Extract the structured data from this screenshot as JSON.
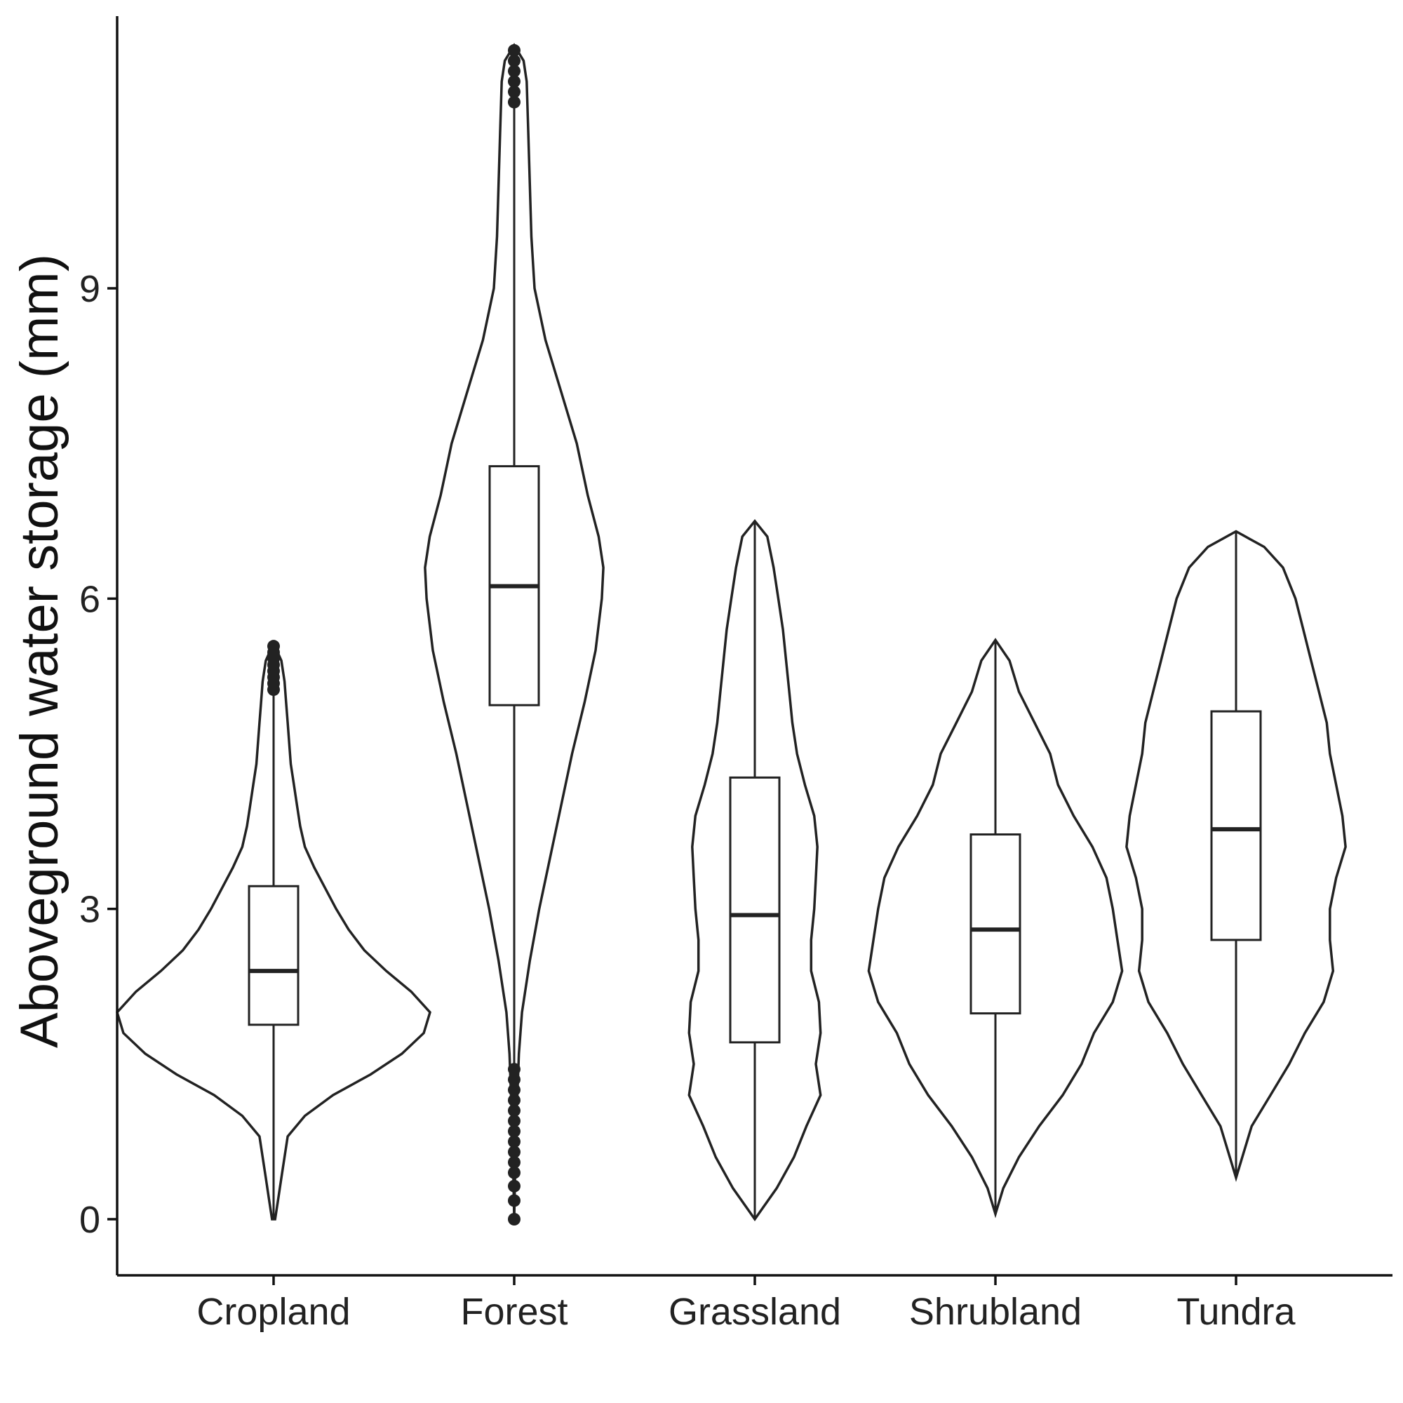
{
  "chart_data": {
    "type": "violin",
    "ylabel": "Aboveground water storage (mm)",
    "xlabel": "",
    "ylim": [
      -0.55,
      11.75
    ],
    "yticks": [
      0,
      3,
      6,
      9
    ],
    "grid": false,
    "colors": {
      "line": "#222222",
      "fill": "#ffffff"
    },
    "categories": [
      "Cropland",
      "Forest",
      "Grassland",
      "Shrubland",
      "Tundra"
    ],
    "series": [
      {
        "category": "Cropland",
        "box": {
          "q1": 1.88,
          "median": 2.4,
          "q3": 3.22,
          "whisker_low": 0.0,
          "whisker_high": 5.1
        },
        "outliers": [
          5.12,
          5.18,
          5.24,
          5.3,
          5.36,
          5.42,
          5.48,
          5.54
        ],
        "density": [
          [
            0.0,
            0.01
          ],
          [
            0.2,
            0.03
          ],
          [
            0.4,
            0.05
          ],
          [
            0.6,
            0.07
          ],
          [
            0.8,
            0.09
          ],
          [
            1.0,
            0.2
          ],
          [
            1.2,
            0.38
          ],
          [
            1.4,
            0.62
          ],
          [
            1.6,
            0.82
          ],
          [
            1.8,
            0.96
          ],
          [
            2.0,
            1.0
          ],
          [
            2.2,
            0.88
          ],
          [
            2.4,
            0.72
          ],
          [
            2.6,
            0.58
          ],
          [
            2.8,
            0.48
          ],
          [
            3.0,
            0.4
          ],
          [
            3.2,
            0.33
          ],
          [
            3.4,
            0.26
          ],
          [
            3.6,
            0.2
          ],
          [
            3.8,
            0.17
          ],
          [
            4.0,
            0.15
          ],
          [
            4.2,
            0.13
          ],
          [
            4.4,
            0.11
          ],
          [
            4.6,
            0.1
          ],
          [
            4.8,
            0.09
          ],
          [
            5.0,
            0.08
          ],
          [
            5.2,
            0.07
          ],
          [
            5.4,
            0.05
          ],
          [
            5.5,
            0.02
          ],
          [
            5.55,
            0.0
          ]
        ]
      },
      {
        "category": "Forest",
        "box": {
          "q1": 4.97,
          "median": 6.12,
          "q3": 7.28,
          "whisker_low": 1.5,
          "whisker_high": 10.75
        },
        "outliers": [
          0.0,
          0.18,
          0.32,
          0.45,
          0.55,
          0.65,
          0.75,
          0.85,
          0.95,
          1.05,
          1.15,
          1.25,
          1.35,
          1.45,
          10.8,
          10.9,
          11.0,
          11.1,
          11.2,
          11.3
        ],
        "density": [
          [
            0.0,
            0.0
          ],
          [
            0.4,
            0.005
          ],
          [
            0.8,
            0.01
          ],
          [
            1.2,
            0.02
          ],
          [
            1.6,
            0.03
          ],
          [
            2.0,
            0.05
          ],
          [
            2.5,
            0.1
          ],
          [
            3.0,
            0.16
          ],
          [
            3.5,
            0.23
          ],
          [
            4.0,
            0.3
          ],
          [
            4.5,
            0.37
          ],
          [
            5.0,
            0.45
          ],
          [
            5.5,
            0.52
          ],
          [
            6.0,
            0.56
          ],
          [
            6.3,
            0.57
          ],
          [
            6.6,
            0.54
          ],
          [
            7.0,
            0.47
          ],
          [
            7.5,
            0.4
          ],
          [
            8.0,
            0.3
          ],
          [
            8.5,
            0.2
          ],
          [
            9.0,
            0.13
          ],
          [
            9.5,
            0.11
          ],
          [
            10.0,
            0.1
          ],
          [
            10.5,
            0.09
          ],
          [
            11.0,
            0.08
          ],
          [
            11.2,
            0.06
          ],
          [
            11.35,
            0.0
          ]
        ]
      },
      {
        "category": "Grassland",
        "box": {
          "q1": 1.71,
          "median": 2.94,
          "q3": 4.27,
          "whisker_low": 0.0,
          "whisker_high": 6.75
        },
        "outliers": [],
        "density": [
          [
            0.0,
            0.0
          ],
          [
            0.3,
            0.14
          ],
          [
            0.6,
            0.25
          ],
          [
            0.9,
            0.33
          ],
          [
            1.2,
            0.42
          ],
          [
            1.5,
            0.39
          ],
          [
            1.8,
            0.42
          ],
          [
            2.1,
            0.41
          ],
          [
            2.4,
            0.36
          ],
          [
            2.7,
            0.36
          ],
          [
            3.0,
            0.38
          ],
          [
            3.3,
            0.39
          ],
          [
            3.6,
            0.4
          ],
          [
            3.9,
            0.38
          ],
          [
            4.2,
            0.32
          ],
          [
            4.5,
            0.27
          ],
          [
            4.8,
            0.24
          ],
          [
            5.1,
            0.22
          ],
          [
            5.4,
            0.2
          ],
          [
            5.7,
            0.18
          ],
          [
            6.0,
            0.15
          ],
          [
            6.3,
            0.12
          ],
          [
            6.6,
            0.08
          ],
          [
            6.75,
            0.0
          ]
        ]
      },
      {
        "category": "Shrubland",
        "box": {
          "q1": 1.99,
          "median": 2.8,
          "q3": 3.72,
          "whisker_low": 0.05,
          "whisker_high": 5.6
        },
        "outliers": [],
        "density": [
          [
            0.05,
            0.0
          ],
          [
            0.3,
            0.05
          ],
          [
            0.6,
            0.15
          ],
          [
            0.9,
            0.28
          ],
          [
            1.2,
            0.43
          ],
          [
            1.5,
            0.55
          ],
          [
            1.8,
            0.63
          ],
          [
            2.1,
            0.75
          ],
          [
            2.4,
            0.81
          ],
          [
            2.7,
            0.78
          ],
          [
            3.0,
            0.75
          ],
          [
            3.3,
            0.71
          ],
          [
            3.6,
            0.62
          ],
          [
            3.9,
            0.5
          ],
          [
            4.2,
            0.4
          ],
          [
            4.5,
            0.35
          ],
          [
            4.8,
            0.25
          ],
          [
            5.1,
            0.15
          ],
          [
            5.4,
            0.09
          ],
          [
            5.6,
            0.0
          ]
        ]
      },
      {
        "category": "Tundra",
        "box": {
          "q1": 2.7,
          "median": 3.77,
          "q3": 4.91,
          "whisker_low": 0.4,
          "whisker_high": 6.65
        },
        "outliers": [],
        "density": [
          [
            0.4,
            0.0
          ],
          [
            0.6,
            0.04
          ],
          [
            0.9,
            0.1
          ],
          [
            1.2,
            0.22
          ],
          [
            1.5,
            0.34
          ],
          [
            1.8,
            0.44
          ],
          [
            2.1,
            0.56
          ],
          [
            2.4,
            0.62
          ],
          [
            2.7,
            0.6
          ],
          [
            3.0,
            0.6
          ],
          [
            3.3,
            0.64
          ],
          [
            3.6,
            0.7
          ],
          [
            3.9,
            0.68
          ],
          [
            4.2,
            0.64
          ],
          [
            4.5,
            0.6
          ],
          [
            4.8,
            0.58
          ],
          [
            5.1,
            0.53
          ],
          [
            5.4,
            0.48
          ],
          [
            5.7,
            0.43
          ],
          [
            6.0,
            0.38
          ],
          [
            6.3,
            0.3
          ],
          [
            6.5,
            0.18
          ],
          [
            6.65,
            0.0
          ]
        ]
      }
    ]
  }
}
